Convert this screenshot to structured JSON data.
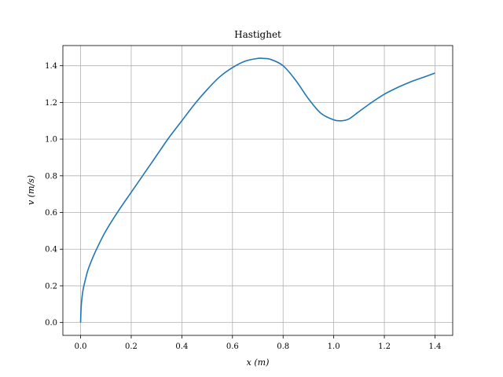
{
  "chart_data": {
    "type": "line",
    "title": "Hastighet",
    "xlabel": "x (m)",
    "ylabel": "v (m/s)",
    "xlim": [
      -0.07,
      1.47
    ],
    "ylim": [
      -0.07,
      1.51
    ],
    "xticks": [
      0.0,
      0.2,
      0.4,
      0.6,
      0.8,
      1.0,
      1.2,
      1.4
    ],
    "xtick_labels": [
      "0.0",
      "0.2",
      "0.4",
      "0.6",
      "0.8",
      "1.0",
      "1.2",
      "1.4"
    ],
    "yticks": [
      0.0,
      0.2,
      0.4,
      0.6,
      0.8,
      1.0,
      1.2,
      1.4
    ],
    "ytick_labels": [
      "0.0",
      "0.2",
      "0.4",
      "0.6",
      "0.8",
      "1.0",
      "1.2",
      "1.4"
    ],
    "grid": true,
    "line_color": "#1f77b4",
    "series": [
      {
        "x": [
          0.0,
          0.002,
          0.005,
          0.01,
          0.02,
          0.03,
          0.05,
          0.07,
          0.1,
          0.15,
          0.2,
          0.25,
          0.3,
          0.35,
          0.4,
          0.45,
          0.5,
          0.55,
          0.6,
          0.65,
          0.7,
          0.72,
          0.75,
          0.8,
          0.85,
          0.9,
          0.95,
          1.0,
          1.03,
          1.06,
          1.1,
          1.15,
          1.2,
          1.25,
          1.3,
          1.35,
          1.4
        ],
        "y": [
          0.0,
          0.08,
          0.13,
          0.18,
          0.24,
          0.29,
          0.36,
          0.42,
          0.5,
          0.61,
          0.71,
          0.81,
          0.91,
          1.01,
          1.1,
          1.19,
          1.27,
          1.34,
          1.39,
          1.425,
          1.44,
          1.44,
          1.435,
          1.4,
          1.32,
          1.22,
          1.14,
          1.105,
          1.1,
          1.11,
          1.15,
          1.2,
          1.245,
          1.28,
          1.31,
          1.335,
          1.36
        ]
      }
    ]
  }
}
